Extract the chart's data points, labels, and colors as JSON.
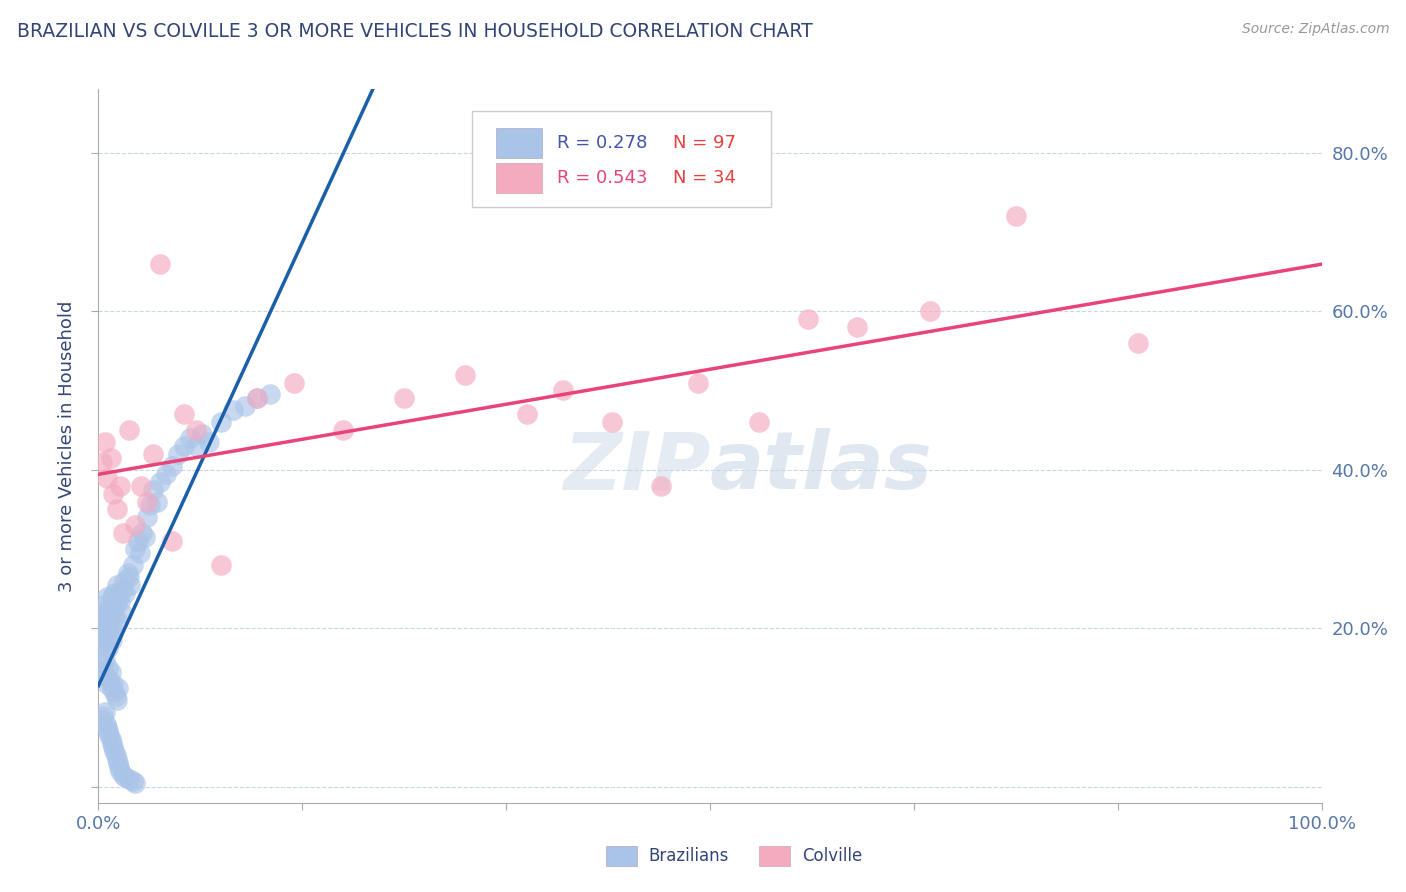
{
  "title": "BRAZILIAN VS COLVILLE 3 OR MORE VEHICLES IN HOUSEHOLD CORRELATION CHART",
  "source": "Source: ZipAtlas.com",
  "ylabel": "3 or more Vehicles in Household",
  "xlim": [
    0.0,
    1.0
  ],
  "ylim": [
    -0.02,
    0.88
  ],
  "brazilian_color": "#aac4e8",
  "colville_color": "#f4aabf",
  "brazilian_line_color": "#1a5fa8",
  "colville_line_color": "#e8447a",
  "trend_line_color": "#aabfdd",
  "legend_r_braz": "R = 0.278",
  "legend_n_braz": "N = 97",
  "legend_r_colv": "R = 0.543",
  "legend_n_colv": "N = 34",
  "text_color": "#4455aa",
  "axis_label_color": "#5577aa",
  "title_color": "#334477",
  "background_color": "#ffffff",
  "grid_color": "#c8d8e8",
  "watermark_color": "#c8d8e8",
  "braz_x": [
    0.001,
    0.002,
    0.002,
    0.003,
    0.003,
    0.004,
    0.004,
    0.005,
    0.005,
    0.006,
    0.006,
    0.007,
    0.007,
    0.008,
    0.008,
    0.009,
    0.009,
    0.01,
    0.01,
    0.011,
    0.011,
    0.012,
    0.012,
    0.013,
    0.013,
    0.014,
    0.015,
    0.015,
    0.016,
    0.017,
    0.018,
    0.019,
    0.02,
    0.021,
    0.022,
    0.024,
    0.025,
    0.026,
    0.028,
    0.03,
    0.032,
    0.034,
    0.036,
    0.038,
    0.04,
    0.042,
    0.045,
    0.048,
    0.05,
    0.055,
    0.06,
    0.065,
    0.07,
    0.075,
    0.08,
    0.085,
    0.09,
    0.1,
    0.11,
    0.12,
    0.13,
    0.14,
    0.003,
    0.004,
    0.005,
    0.006,
    0.007,
    0.008,
    0.009,
    0.01,
    0.011,
    0.012,
    0.013,
    0.014,
    0.015,
    0.016,
    0.003,
    0.004,
    0.005,
    0.006,
    0.007,
    0.008,
    0.009,
    0.01,
    0.011,
    0.012,
    0.013,
    0.014,
    0.015,
    0.016,
    0.017,
    0.018,
    0.02,
    0.022,
    0.025,
    0.028,
    0.03
  ],
  "braz_y": [
    0.2,
    0.21,
    0.19,
    0.22,
    0.18,
    0.2,
    0.23,
    0.21,
    0.185,
    0.175,
    0.22,
    0.195,
    0.24,
    0.21,
    0.175,
    0.19,
    0.225,
    0.215,
    0.195,
    0.185,
    0.24,
    0.2,
    0.225,
    0.215,
    0.245,
    0.23,
    0.21,
    0.255,
    0.245,
    0.24,
    0.235,
    0.22,
    0.25,
    0.26,
    0.245,
    0.27,
    0.265,
    0.255,
    0.28,
    0.3,
    0.31,
    0.295,
    0.32,
    0.315,
    0.34,
    0.355,
    0.375,
    0.36,
    0.385,
    0.395,
    0.405,
    0.42,
    0.43,
    0.44,
    0.43,
    0.445,
    0.435,
    0.46,
    0.475,
    0.48,
    0.49,
    0.495,
    0.155,
    0.145,
    0.16,
    0.14,
    0.13,
    0.15,
    0.135,
    0.145,
    0.125,
    0.13,
    0.12,
    0.115,
    0.11,
    0.125,
    0.085,
    0.09,
    0.095,
    0.08,
    0.075,
    0.07,
    0.065,
    0.06,
    0.055,
    0.05,
    0.045,
    0.04,
    0.035,
    0.03,
    0.025,
    0.02,
    0.015,
    0.012,
    0.01,
    0.008,
    0.005
  ],
  "colv_x": [
    0.003,
    0.005,
    0.007,
    0.01,
    0.012,
    0.015,
    0.018,
    0.02,
    0.025,
    0.03,
    0.035,
    0.04,
    0.045,
    0.05,
    0.06,
    0.07,
    0.08,
    0.1,
    0.13,
    0.16,
    0.2,
    0.25,
    0.3,
    0.35,
    0.38,
    0.42,
    0.46,
    0.49,
    0.54,
    0.58,
    0.62,
    0.68,
    0.75,
    0.85
  ],
  "colv_y": [
    0.41,
    0.435,
    0.39,
    0.415,
    0.37,
    0.35,
    0.38,
    0.32,
    0.45,
    0.33,
    0.38,
    0.36,
    0.42,
    0.66,
    0.31,
    0.47,
    0.45,
    0.28,
    0.49,
    0.51,
    0.45,
    0.49,
    0.52,
    0.47,
    0.5,
    0.46,
    0.38,
    0.51,
    0.46,
    0.59,
    0.58,
    0.6,
    0.72,
    0.56
  ]
}
